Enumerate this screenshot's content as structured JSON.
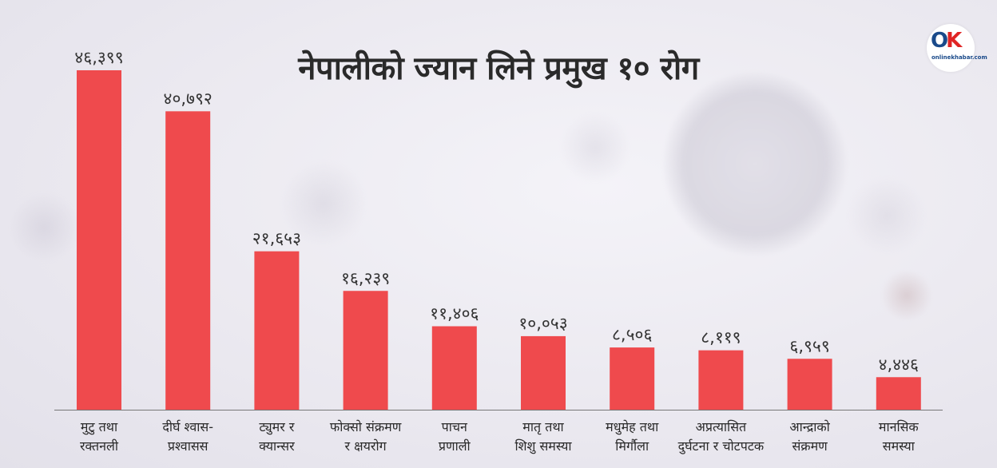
{
  "title": "नेपालीको ज्यान लिने प्रमुख १० रोग",
  "logo": {
    "mark_o": "O",
    "mark_k": "K",
    "brand": "onlinekhabar.com"
  },
  "colors": {
    "bar": "#ef4a4d",
    "axis": "#777777"
  },
  "chart_data": {
    "type": "bar",
    "title": "नेपालीको ज्यान लिने प्रमुख १० रोग",
    "xlabel": "",
    "ylabel": "",
    "ylim": [
      0,
      50000
    ],
    "grid": false,
    "legend": "none",
    "categories": [
      [
        "मुटु तथा",
        "रक्तनली"
      ],
      [
        "दीर्घ श्वास-",
        "प्रश्वासस"
      ],
      [
        "ट्युमर र",
        "क्यान्सर"
      ],
      [
        "फोक्सो संक्रमण",
        "र क्षयरोग"
      ],
      [
        "पाचन",
        "प्रणाली"
      ],
      [
        "मातृ तथा",
        "शिशु समस्या"
      ],
      [
        "मधुमेह तथा",
        "मिर्गौला"
      ],
      [
        "अप्रत्यासित",
        "दुर्घटना र चोटपटक"
      ],
      [
        "आन्द्राको",
        "संक्रमण"
      ],
      [
        "मानसिक",
        "समस्या"
      ]
    ],
    "values": [
      46399,
      40792,
      21653,
      16239,
      11406,
      10053,
      8506,
      8119,
      6959,
      4446
    ],
    "value_labels": [
      "४६,३९९",
      "४०,७९२",
      "२१,६५३",
      "१६,२३९",
      "११,४०६",
      "१०,०५३",
      "८,५०६",
      "८,११९",
      "६,९५९",
      "४,४४६"
    ]
  }
}
